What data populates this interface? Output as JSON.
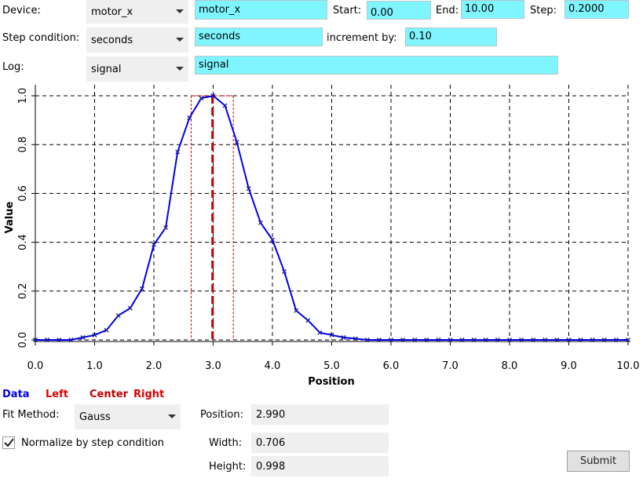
{
  "form": {
    "device_label": "Device:",
    "device_select": "motor_x",
    "device_value": "motor_x",
    "start_label": "Start:",
    "start_value": "0.00",
    "end_label": "End:",
    "end_value": "10.00",
    "step_label": "Step:",
    "step_value": "0.2000",
    "stepcond_label": "Step condition:",
    "stepcond_select": "seconds",
    "stepcond_value": "seconds",
    "increment_label": "increment by:",
    "increment_value": "0.10",
    "log_label": "Log:",
    "log_select": "signal",
    "log_value": "signal"
  },
  "legend": {
    "data": "Data",
    "left": "Left",
    "center": "Center",
    "right": "Right",
    "colors": {
      "data": "#0000ee",
      "markers": "#cc0000"
    }
  },
  "fit": {
    "method_label": "Fit Method:",
    "method_value": "Gauss",
    "position_label": "Position:",
    "position_value": "2.990",
    "width_label": "Width:",
    "width_value": "0.706",
    "height_label": "Height:",
    "height_value": "0.998",
    "normalize_label": "Normalize by step condition",
    "normalize_checked": true,
    "submit_label": "Submit"
  },
  "chart_data": {
    "type": "line",
    "xlabel": "Position",
    "ylabel": "Value",
    "xlim": [
      0,
      10
    ],
    "ylim": [
      0,
      1
    ],
    "grid": true,
    "xticks": [
      "0.0",
      "1.0",
      "2.0",
      "3.0",
      "4.0",
      "5.0",
      "6.0",
      "7.0",
      "8.0",
      "9.0",
      "10.0"
    ],
    "yticks": [
      "0.0",
      "0.2",
      "0.4",
      "0.6",
      "0.8",
      "1.0"
    ],
    "series": [
      {
        "name": "Data",
        "color": "#0000ee",
        "x": [
          0.0,
          0.2,
          0.4,
          0.6,
          0.8,
          1.0,
          1.2,
          1.4,
          1.6,
          1.8,
          2.0,
          2.2,
          2.4,
          2.6,
          2.8,
          3.0,
          3.2,
          3.4,
          3.6,
          3.8,
          4.0,
          4.2,
          4.4,
          4.6,
          4.8,
          5.0,
          5.2,
          5.4,
          5.6,
          5.8,
          6.0,
          6.2,
          6.4,
          6.6,
          6.8,
          7.0,
          7.2,
          7.4,
          7.6,
          7.8,
          8.0,
          8.2,
          8.4,
          8.6,
          8.8,
          9.0,
          9.2,
          9.4,
          9.6,
          9.8,
          10.0
        ],
        "y": [
          0.0,
          0.0,
          0.0,
          0.0,
          0.01,
          0.02,
          0.04,
          0.1,
          0.13,
          0.21,
          0.39,
          0.46,
          0.77,
          0.91,
          0.99,
          1.0,
          0.96,
          0.81,
          0.62,
          0.48,
          0.41,
          0.28,
          0.12,
          0.08,
          0.03,
          0.02,
          0.01,
          0.005,
          0.0,
          0.0,
          0.0,
          0.0,
          0.0,
          0.0,
          0.0,
          0.0,
          0.0,
          0.0,
          0.0,
          0.0,
          0.0,
          0.0,
          0.0,
          0.0,
          0.0,
          0.0,
          0.0,
          0.0,
          0.0,
          0.0,
          0.0
        ]
      }
    ],
    "markers": {
      "left": 2.63,
      "center": 2.99,
      "right": 3.34
    }
  }
}
